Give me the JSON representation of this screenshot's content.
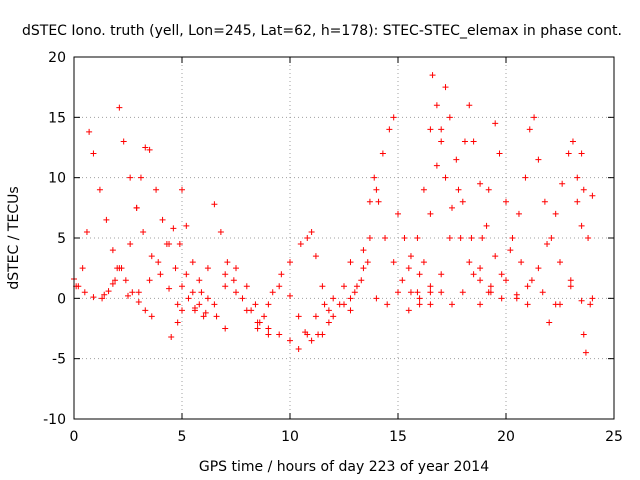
{
  "chart_data": {
    "type": "scatter",
    "title": "dSTEC Iono. truth (yell, Lon=245, Lat=62, h=178): STEC-STEC_elemax in phase cont.",
    "xlabel": "GPS time / hours of day 223 of year 2014",
    "ylabel": "dSTEC  / TECUs",
    "xlim": [
      0,
      25
    ],
    "ylim": [
      -10,
      20
    ],
    "xticks": [
      "0",
      "5",
      "10",
      "15",
      "20",
      "25"
    ],
    "yticks": [
      "-10",
      "-5",
      "0",
      "5",
      "10",
      "15",
      "20"
    ],
    "grid": true,
    "marker": "+",
    "color": "#ff0000",
    "series": [
      {
        "points": [
          [
            0.0,
            1.6
          ],
          [
            0.2,
            1.0
          ],
          [
            0.4,
            2.5
          ],
          [
            0.6,
            5.5
          ],
          [
            0.7,
            13.8
          ],
          [
            0.9,
            12.0
          ],
          [
            1.2,
            9.0
          ],
          [
            1.5,
            6.5
          ],
          [
            1.8,
            4.0
          ],
          [
            2.1,
            2.5
          ],
          [
            2.4,
            1.5
          ],
          [
            2.7,
            0.5
          ],
          [
            3.0,
            -0.3
          ],
          [
            3.3,
            -1.0
          ],
          [
            3.6,
            -1.5
          ]
        ]
      },
      {
        "points": [
          [
            0.1,
            1.0
          ],
          [
            0.5,
            0.5
          ],
          [
            0.9,
            0.1
          ],
          [
            1.3,
            0.0
          ],
          [
            1.6,
            0.6
          ],
          [
            1.9,
            1.5
          ],
          [
            2.0,
            2.5
          ],
          [
            2.1,
            15.8
          ],
          [
            2.3,
            13.0
          ],
          [
            2.6,
            10.0
          ],
          [
            2.9,
            7.5
          ],
          [
            3.2,
            5.5
          ],
          [
            3.6,
            3.5
          ],
          [
            4.0,
            2.0
          ],
          [
            4.4,
            0.8
          ],
          [
            4.8,
            -0.5
          ],
          [
            5.0,
            -1.0
          ]
        ]
      },
      {
        "points": [
          [
            1.4,
            0.3
          ],
          [
            1.8,
            1.2
          ],
          [
            2.2,
            2.5
          ],
          [
            2.6,
            4.5
          ],
          [
            2.9,
            7.5
          ],
          [
            3.1,
            10.0
          ],
          [
            3.3,
            12.5
          ],
          [
            3.5,
            12.3
          ],
          [
            3.8,
            9.0
          ],
          [
            4.1,
            6.5
          ],
          [
            4.4,
            4.5
          ],
          [
            4.7,
            2.5
          ],
          [
            5.0,
            1.0
          ],
          [
            5.3,
            0.0
          ],
          [
            5.6,
            -0.8
          ]
        ]
      },
      {
        "points": [
          [
            2.5,
            0.2
          ],
          [
            3.0,
            0.5
          ],
          [
            3.5,
            1.5
          ],
          [
            3.9,
            3.0
          ],
          [
            4.3,
            4.5
          ],
          [
            4.6,
            5.8
          ],
          [
            4.9,
            4.5
          ],
          [
            5.2,
            2.0
          ],
          [
            5.5,
            0.5
          ],
          [
            5.8,
            -0.5
          ],
          [
            6.1,
            -1.2
          ]
        ]
      },
      {
        "points": [
          [
            4.5,
            -3.2
          ],
          [
            4.8,
            -2.0
          ],
          [
            5.0,
            9.0
          ],
          [
            5.2,
            6.0
          ],
          [
            5.5,
            3.0
          ],
          [
            5.8,
            1.5
          ],
          [
            6.2,
            0.0
          ],
          [
            6.6,
            -1.5
          ],
          [
            7.0,
            -2.5
          ]
        ]
      },
      {
        "points": [
          [
            5.6,
            -1.0
          ],
          [
            5.9,
            0.5
          ],
          [
            6.2,
            2.5
          ],
          [
            6.5,
            7.8
          ],
          [
            6.8,
            5.5
          ],
          [
            7.1,
            3.0
          ],
          [
            7.4,
            1.5
          ],
          [
            7.8,
            0.0
          ],
          [
            8.2,
            -1.0
          ],
          [
            8.6,
            -2.0
          ],
          [
            9.0,
            -3.0
          ]
        ]
      },
      {
        "points": [
          [
            6.0,
            -1.5
          ],
          [
            6.5,
            -0.5
          ],
          [
            7.0,
            1.0
          ],
          [
            7.5,
            2.5
          ],
          [
            8.0,
            1.0
          ],
          [
            8.4,
            -0.5
          ],
          [
            8.8,
            -1.5
          ],
          [
            9.2,
            0.5
          ],
          [
            9.6,
            2.0
          ],
          [
            10.0,
            3.0
          ],
          [
            10.5,
            4.5
          ],
          [
            10.8,
            5.0
          ],
          [
            11.0,
            5.5
          ],
          [
            11.2,
            3.5
          ],
          [
            11.5,
            1.0
          ],
          [
            11.8,
            -1.0
          ]
        ]
      },
      {
        "points": [
          [
            8.5,
            -2.5
          ],
          [
            9.0,
            -0.5
          ],
          [
            9.5,
            1.0
          ],
          [
            10.0,
            0.2
          ],
          [
            10.4,
            -1.5
          ],
          [
            10.7,
            -2.8
          ],
          [
            11.0,
            -3.5
          ],
          [
            11.3,
            -3.0
          ],
          [
            11.8,
            -2.0
          ],
          [
            12.3,
            -0.5
          ],
          [
            12.8,
            0.0
          ],
          [
            13.3,
            1.5
          ],
          [
            13.6,
            3.0
          ]
        ]
      },
      {
        "points": [
          [
            7.0,
            2.0
          ],
          [
            7.5,
            0.5
          ],
          [
            8.0,
            -1.0
          ],
          [
            8.5,
            -2.0
          ],
          [
            9.0,
            -2.5
          ],
          [
            9.5,
            -3.0
          ],
          [
            10.0,
            -3.5
          ],
          [
            10.4,
            -4.2
          ],
          [
            10.8,
            -3.0
          ],
          [
            11.2,
            -1.5
          ],
          [
            11.6,
            -0.5
          ],
          [
            12.0,
            0.0
          ],
          [
            12.5,
            1.0
          ],
          [
            12.8,
            3.0
          ]
        ]
      },
      {
        "points": [
          [
            11.5,
            -3.0
          ],
          [
            12.0,
            -1.5
          ],
          [
            12.5,
            -0.5
          ],
          [
            13.0,
            0.5
          ],
          [
            13.4,
            2.5
          ],
          [
            13.7,
            5.0
          ],
          [
            14.0,
            9.0
          ],
          [
            14.3,
            12.0
          ],
          [
            14.6,
            14.0
          ],
          [
            14.8,
            15.0
          ],
          [
            15.0,
            7.0
          ],
          [
            15.3,
            5.0
          ],
          [
            15.6,
            3.5
          ],
          [
            16.0,
            2.0
          ],
          [
            16.5,
            1.0
          ],
          [
            17.0,
            0.5
          ]
        ]
      },
      {
        "points": [
          [
            12.8,
            -1.0
          ],
          [
            13.1,
            1.0
          ],
          [
            13.4,
            4.0
          ],
          [
            13.7,
            8.0
          ],
          [
            13.9,
            10.0
          ],
          [
            14.1,
            8.0
          ],
          [
            14.4,
            5.0
          ],
          [
            14.8,
            3.0
          ],
          [
            15.2,
            1.5
          ],
          [
            15.6,
            0.5
          ],
          [
            16.0,
            0.0
          ],
          [
            16.5,
            -0.5
          ]
        ]
      },
      {
        "points": [
          [
            14.0,
            0.0
          ],
          [
            14.5,
            -0.5
          ],
          [
            15.0,
            0.5
          ],
          [
            15.5,
            2.5
          ],
          [
            15.9,
            5.0
          ],
          [
            16.2,
            9.0
          ],
          [
            16.5,
            14.0
          ],
          [
            16.6,
            18.5
          ],
          [
            16.8,
            16.0
          ],
          [
            17.0,
            13.0
          ],
          [
            17.2,
            10.0
          ],
          [
            17.5,
            7.5
          ],
          [
            17.9,
            5.0
          ],
          [
            18.3,
            3.0
          ],
          [
            18.8,
            1.5
          ],
          [
            19.2,
            0.5
          ]
        ]
      },
      {
        "points": [
          [
            15.5,
            -1.0
          ],
          [
            15.9,
            0.5
          ],
          [
            16.2,
            3.0
          ],
          [
            16.5,
            7.0
          ],
          [
            16.8,
            11.0
          ],
          [
            17.0,
            14.0
          ],
          [
            17.2,
            17.5
          ],
          [
            17.4,
            15.0
          ],
          [
            17.7,
            11.5
          ],
          [
            18.0,
            8.0
          ],
          [
            18.4,
            5.0
          ],
          [
            18.8,
            2.5
          ],
          [
            19.3,
            1.0
          ],
          [
            19.8,
            0.0
          ]
        ]
      },
      {
        "points": [
          [
            16.0,
            -0.5
          ],
          [
            16.5,
            0.5
          ],
          [
            17.0,
            2.0
          ],
          [
            17.4,
            5.0
          ],
          [
            17.8,
            9.0
          ],
          [
            18.1,
            13.0
          ],
          [
            18.3,
            16.0
          ],
          [
            18.5,
            13.0
          ],
          [
            18.8,
            9.5
          ],
          [
            19.1,
            6.0
          ],
          [
            19.5,
            3.5
          ],
          [
            20.0,
            1.5
          ],
          [
            20.5,
            0.3
          ],
          [
            21.0,
            -0.5
          ]
        ]
      },
      {
        "points": [
          [
            17.5,
            -0.5
          ],
          [
            18.0,
            0.5
          ],
          [
            18.5,
            2.0
          ],
          [
            18.9,
            5.0
          ],
          [
            19.2,
            9.0
          ],
          [
            19.5,
            14.5
          ],
          [
            19.7,
            12.0
          ],
          [
            20.0,
            8.0
          ],
          [
            20.3,
            5.0
          ],
          [
            20.7,
            3.0
          ],
          [
            21.2,
            1.5
          ],
          [
            21.7,
            0.5
          ],
          [
            22.3,
            -0.5
          ]
        ]
      },
      {
        "points": [
          [
            18.8,
            -0.5
          ],
          [
            19.3,
            0.5
          ],
          [
            19.8,
            2.0
          ],
          [
            20.2,
            4.0
          ],
          [
            20.6,
            7.0
          ],
          [
            20.9,
            10.0
          ],
          [
            21.1,
            14.0
          ],
          [
            21.3,
            15.0
          ],
          [
            21.5,
            11.5
          ],
          [
            21.8,
            8.0
          ],
          [
            22.1,
            5.0
          ],
          [
            22.5,
            3.0
          ],
          [
            23.0,
            1.0
          ],
          [
            23.5,
            -0.2
          ]
        ]
      },
      {
        "points": [
          [
            20.5,
            0.0
          ],
          [
            21.0,
            1.0
          ],
          [
            21.5,
            2.5
          ],
          [
            21.9,
            4.5
          ],
          [
            22.3,
            7.0
          ],
          [
            22.6,
            9.5
          ],
          [
            22.9,
            12.0
          ],
          [
            23.1,
            13.0
          ],
          [
            23.3,
            10.0
          ],
          [
            23.5,
            6.0
          ],
          [
            23.6,
            -3.0
          ],
          [
            23.7,
            -4.5
          ],
          [
            23.9,
            -0.5
          ],
          [
            24.0,
            0.0
          ]
        ]
      },
      {
        "points": [
          [
            22.0,
            -2.0
          ],
          [
            22.5,
            -0.5
          ],
          [
            23.0,
            1.5
          ],
          [
            23.3,
            8.0
          ],
          [
            23.5,
            12.0
          ],
          [
            23.6,
            9.0
          ],
          [
            23.8,
            5.0
          ],
          [
            24.0,
            8.5
          ]
        ]
      }
    ]
  }
}
